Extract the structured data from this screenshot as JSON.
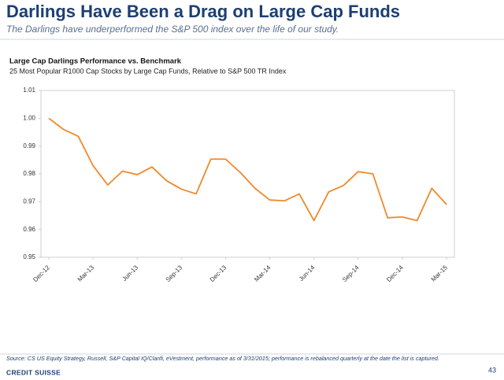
{
  "slide": {
    "title": "Darlings Have Been a Drag on Large Cap Funds",
    "subtitle": "The Darlings have underperformed the S&P 500 index over the life of our study.",
    "source": "Source: CS US Equity Strategy, Russell, S&P Capital IQ/Clarifi, eVestment, performance as of 3/31/2015; performance is rebalanced quarterly at the date the list is captured.",
    "logo": "CREDIT SUISSE",
    "page_number": "43"
  },
  "chart_data": {
    "type": "line",
    "title": "Large Cap Darlings Performance vs. Benchmark",
    "subtitle": "25 Most Popular R1000 Cap Stocks by Large Cap Funds, Relative to S&P 500 TR Index",
    "categories": [
      "Dec-12",
      null,
      null,
      "Mar-13",
      null,
      null,
      "Jun-13",
      null,
      null,
      "Sep-13",
      null,
      null,
      "Dec-13",
      null,
      null,
      "Mar-14",
      null,
      null,
      "Jun-14",
      null,
      null,
      "Sep-14",
      null,
      null,
      "Dec-14",
      null,
      null,
      "Mar-15"
    ],
    "series": [
      {
        "name": "Large Cap Darlings",
        "color": "#f0892a",
        "values": [
          1.0,
          0.996,
          0.9935,
          0.983,
          0.976,
          0.981,
          0.9797,
          0.9825,
          0.9775,
          0.9745,
          0.9728,
          0.9853,
          0.9853,
          0.9805,
          0.9748,
          0.9706,
          0.9703,
          0.9728,
          0.9632,
          0.9735,
          0.9758,
          0.9808,
          0.98,
          0.9642,
          0.9645,
          0.9632,
          0.9748,
          0.969
        ]
      }
    ],
    "ylim": [
      0.95,
      1.01
    ],
    "yticks": [
      0.95,
      0.96,
      0.97,
      0.98,
      0.99,
      {
        "value": 1,
        "label": "1.00"
      },
      1.01
    ],
    "grid": false
  }
}
